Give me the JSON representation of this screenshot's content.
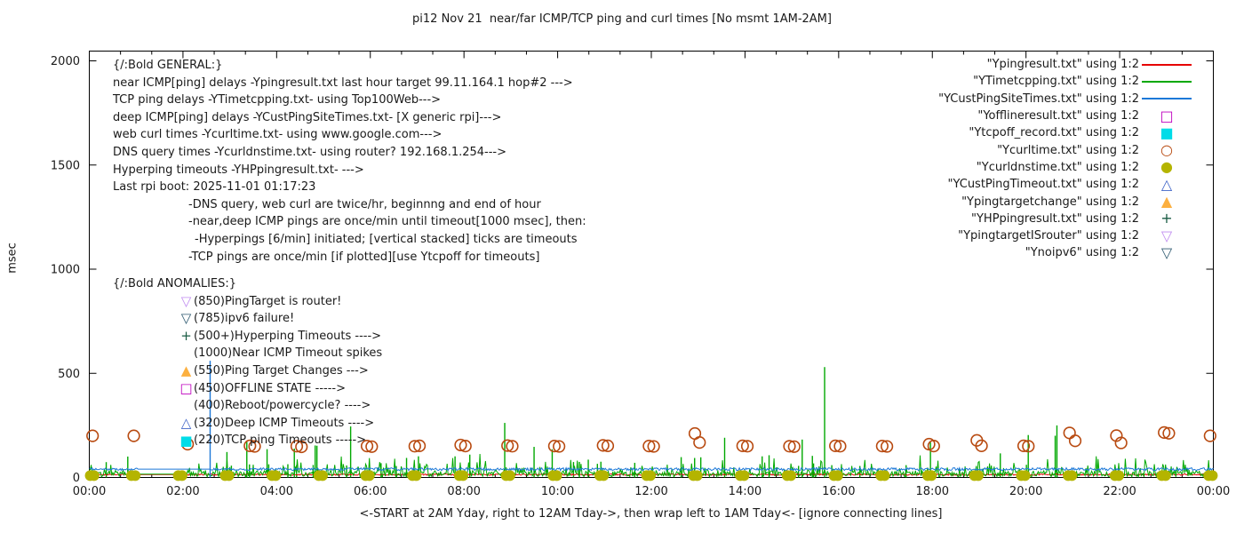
{
  "title": "pi12 Nov 21  near/far ICMP/TCP ping and curl times [No msmt 1AM-2AM]",
  "axes": {
    "ylabel": "msec",
    "xnote": "<-START at 2AM Yday, right to 12AM Tday->, then wrap left to 1AM Tday<- [ignore connecting lines]",
    "x_tick_labels": [
      "00:00",
      "02:00",
      "04:00",
      "06:00",
      "08:00",
      "10:00",
      "12:00",
      "14:00",
      "16:00",
      "18:00",
      "20:00",
      "22:00",
      "00:00"
    ],
    "y_tick_labels": [
      "0",
      "500",
      "1000",
      "1500",
      "2000"
    ],
    "xlim_hours": [
      0,
      24
    ],
    "ylim_msec": [
      0,
      2047
    ],
    "x_major_step_hours": 2,
    "x_minor_per_major": 2,
    "grid": false,
    "legend_position": "top-right-inside"
  },
  "general_block": {
    "lines": [
      "{/:Bold GENERAL:}",
      "near ICMP[ping] delays -Ypingresult.txt last hour target 99.11.164.1 hop#2 --->",
      "TCP ping delays -YTimetcpping.txt- using Top100Web--->",
      "deep ICMP[ping] delays -YCustPingSiteTimes.txt- [X generic rpi]--->",
      "web curl times -Ycurltime.txt- using www.google.com--->",
      "DNS query times -Ycurldnstime.txt- using router? 192.168.1.254--->",
      "Hyperping timeouts -YHPpingresult.txt- --->",
      "Last rpi boot: 2025-11-01 01:17:23",
      "-DNS query, web curl are twice/hr, beginnng and end of hour",
      "-near,deep ICMP pings are once/min until timeout[1000 msec], then:",
      "-Hyperpings [6/min] initiated; [vertical stacked] ticks are timeouts",
      "-TCP pings are once/min [if plotted][use Ytcpoff for timeouts]"
    ]
  },
  "anomalies_block": {
    "header": "{/:Bold ANOMALIES:}",
    "lines": [
      {
        "marker": "open-triangle-down",
        "color": "#c08cf0",
        "text": "(850)PingTarget is router!"
      },
      {
        "marker": "open-triangle-down",
        "color": "#2e5a70",
        "text": "(785)ipv6 failure!"
      },
      {
        "marker": "plus",
        "color": "#1a5c44",
        "text": "(500+)Hyperping Timeouts ---->"
      },
      {
        "marker": null,
        "color": null,
        "text": "(1000)Near ICMP Timeout spikes"
      },
      {
        "marker": "filled-triangle-up",
        "color": "#fcb040",
        "text": "(550)Ping Target Changes --->"
      },
      {
        "marker": "open-square",
        "color": "#bf00bf",
        "text": "(450)OFFLINE STATE ----->"
      },
      {
        "marker": null,
        "color": null,
        "text": "(400)Reboot/powercycle? ---->"
      },
      {
        "marker": "open-triangle-up",
        "color": "#4166c8",
        "text": "(320)Deep ICMP Timeouts ---->"
      },
      {
        "marker": "filled-square",
        "color": "#00dce8",
        "text": "(220)TCP ping Timeouts ----->"
      }
    ]
  },
  "chart_data": {
    "type": "mixed-line-scatter-impulse",
    "x_unit": "hours 00:00-24:00",
    "y_unit": "msec",
    "measurement_gap_hours": [
      1.0,
      2.07
    ],
    "series": [
      {
        "label": "\"Ypingresult.txt\" using 1:2",
        "marker": "line",
        "color": "#e60000",
        "type": "noise-line",
        "base": 14,
        "noise": 7,
        "gaps": [
          [
            1.03,
            2.07
          ]
        ]
      },
      {
        "label": "\"YTimetcpping.txt\" using 1:2",
        "marker": "line",
        "color": "#00a800",
        "type": "noise-line",
        "base": 16,
        "noise": 26,
        "spike_prob": 0.32,
        "spike_amp": 95,
        "gaps": [
          [
            1.03,
            2.07
          ]
        ]
      },
      {
        "label": "\"YCustPingSiteTimes.txt\" using 1:2",
        "marker": "line",
        "color": "#1c78d8",
        "type": "noise-line",
        "base": 40,
        "noise": 13,
        "gaps": [
          [
            1.03,
            2.57
          ]
        ],
        "impulses": [
          [
            2.58,
            560
          ]
        ]
      },
      {
        "label": "\"Yofflineresult.txt\" using 1:2",
        "marker": "open-square",
        "color": "#bf00bf",
        "type": "points",
        "points": []
      },
      {
        "label": "\"Ytcpoff_record.txt\" using 1:2",
        "marker": "filled-square",
        "color": "#00dce8",
        "type": "points",
        "points": []
      },
      {
        "label": "\"Ycurltime.txt\" using 1:2",
        "marker": "open-circle",
        "color": "#b84a10",
        "type": "points",
        "points": [
          [
            0.07,
            200
          ],
          [
            0.95,
            200
          ],
          [
            2.1,
            160
          ],
          [
            3.43,
            152
          ],
          [
            3.53,
            149
          ],
          [
            4.43,
            150
          ],
          [
            4.53,
            147
          ],
          [
            5.93,
            151
          ],
          [
            6.03,
            148
          ],
          [
            6.95,
            150
          ],
          [
            7.05,
            152
          ],
          [
            7.93,
            156
          ],
          [
            8.03,
            151
          ],
          [
            8.93,
            153
          ],
          [
            9.03,
            150
          ],
          [
            9.93,
            151
          ],
          [
            10.03,
            149
          ],
          [
            10.97,
            154
          ],
          [
            11.07,
            152
          ],
          [
            11.95,
            151
          ],
          [
            12.05,
            149
          ],
          [
            12.93,
            211
          ],
          [
            13.03,
            168
          ],
          [
            13.95,
            152
          ],
          [
            14.05,
            150
          ],
          [
            14.95,
            150
          ],
          [
            15.05,
            148
          ],
          [
            15.93,
            152
          ],
          [
            16.03,
            150
          ],
          [
            16.93,
            151
          ],
          [
            17.03,
            149
          ],
          [
            17.93,
            160
          ],
          [
            18.03,
            151
          ],
          [
            18.95,
            178
          ],
          [
            19.05,
            152
          ],
          [
            19.95,
            152
          ],
          [
            20.05,
            150
          ],
          [
            20.93,
            214
          ],
          [
            21.05,
            176
          ],
          [
            21.93,
            201
          ],
          [
            22.03,
            166
          ],
          [
            22.95,
            216
          ],
          [
            23.05,
            212
          ],
          [
            23.93,
            200
          ]
        ]
      },
      {
        "label": "\"Ycurldnstime.txt\" using 1:2",
        "marker": "filled-circle",
        "color": "#b4b400",
        "type": "hourly-pairs",
        "value": 9,
        "start_hour": 0,
        "end_hour": 24
      },
      {
        "label": "\"YCustPingTimeout.txt\" using 1:2",
        "marker": "open-triangle-up",
        "color": "#4166c8",
        "type": "points",
        "points": []
      },
      {
        "label": "\"Ypingtargetchange\" using 1:2",
        "marker": "filled-triangle-up",
        "color": "#fcb040",
        "type": "points",
        "points": []
      },
      {
        "label": "\"YHPpingresult.txt\" using 1:2",
        "marker": "plus",
        "color": "#1a5c44",
        "type": "impulses",
        "impulse_color": "#00a800",
        "impulses": [
          [
            5.58,
            245
          ],
          [
            8.87,
            262
          ],
          [
            15.7,
            530
          ],
          [
            20.66,
            250
          ]
        ],
        "random": {
          "count": 48,
          "vmin": 55,
          "vmax": 215
        },
        "gaps": [
          [
            1.03,
            2.07
          ]
        ]
      },
      {
        "label": "\"YpingtargetISrouter\" using 1:2",
        "marker": "open-triangle-down",
        "color": "#c08cf0",
        "type": "points",
        "points": []
      },
      {
        "label": "\"Ynoipv6\" using 1:2",
        "marker": "open-triangle-down",
        "color": "#2e5a70",
        "type": "points",
        "points": []
      }
    ]
  }
}
